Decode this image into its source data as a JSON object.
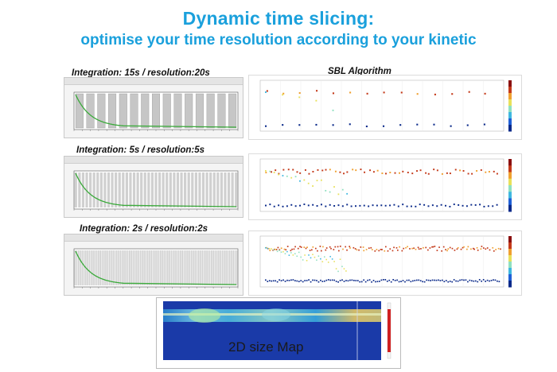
{
  "title": {
    "line1": "Dynamic time slicing:",
    "line2": "optimise your time resolution according to your kinetic"
  },
  "colors": {
    "title": "#1aa0dc",
    "curve": "#3aaa3a",
    "slice": "#888888"
  },
  "left_panels": [
    {
      "label": "Integration: 15s / resolution:20s",
      "slices": 15
    },
    {
      "label": "Integration: 5s / resolution:5s",
      "slices": 45
    },
    {
      "label": "Integration: 2s / resolution:2s",
      "slices": 90
    }
  ],
  "sbl_label": {
    "prefix": "SBL ",
    "emph": "Algorithm"
  },
  "map_label": "2D size Map"
}
